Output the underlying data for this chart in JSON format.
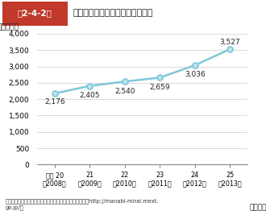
{
  "title_box": "第2-4-2図",
  "title_main": "「学校支援地域本部」の設置状況",
  "ylabel": "（本部数）",
  "xlabel_suffix": "（年度）",
  "x_labels": [
    "平成 20\n（2008）",
    "21\n（2009）",
    "22\n（2010）",
    "23\n（2011）",
    "24\n（2012）",
    "25\n（2013）"
  ],
  "x_values": [
    0,
    1,
    2,
    3,
    4,
    5
  ],
  "y_values": [
    2176,
    2405,
    2540,
    2659,
    3036,
    3527
  ],
  "data_labels": [
    "2,176",
    "2,405",
    "2,540",
    "2,659",
    "3,036",
    "3,527"
  ],
  "ylim": [
    0,
    4000
  ],
  "yticks": [
    0,
    500,
    1000,
    1500,
    2000,
    2500,
    3000,
    3500,
    4000
  ],
  "line_color": "#7ec8d8",
  "marker_face_color": "#b8e4f0",
  "marker_edge_color": "#7ec8d8",
  "title_box_bg": "#c0392b",
  "title_box_fg": "#ffffff",
  "background_color": "#ffffff",
  "footer": "（出典）文部科学省「学校と地域でつくる学びの未来」（http://manabi-mirai.mext.\ngo.jp/）",
  "grid_color": "#cccccc"
}
